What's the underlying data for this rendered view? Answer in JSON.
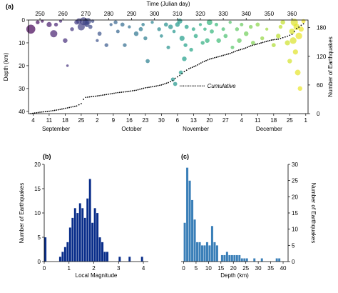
{
  "chart_data": [
    {
      "panel": "(a)",
      "type": "scatter",
      "top_axis_label": "Time (Julian day)",
      "top_ticks": [
        250,
        260,
        270,
        280,
        290,
        300,
        310,
        320,
        330,
        340,
        350,
        360
      ],
      "x_range_julian": [
        245,
        367
      ],
      "bottom_day_ticks": [
        {
          "label": "4",
          "jd": 247
        },
        {
          "label": "11",
          "jd": 254
        },
        {
          "label": "18",
          "jd": 261
        },
        {
          "label": "25",
          "jd": 268
        },
        {
          "label": "2",
          "jd": 275
        },
        {
          "label": "9",
          "jd": 282
        },
        {
          "label": "16",
          "jd": 289
        },
        {
          "label": "23",
          "jd": 296
        },
        {
          "label": "30",
          "jd": 303
        },
        {
          "label": "6",
          "jd": 310
        },
        {
          "label": "13",
          "jd": 317
        },
        {
          "label": "20",
          "jd": 324
        },
        {
          "label": "27",
          "jd": 331
        },
        {
          "label": "4",
          "jd": 338
        },
        {
          "label": "11",
          "jd": 345
        },
        {
          "label": "18",
          "jd": 352
        },
        {
          "label": "25",
          "jd": 359
        },
        {
          "label": "1",
          "jd": 366
        }
      ],
      "months": [
        {
          "label": "September",
          "jd": 257
        },
        {
          "label": "October",
          "jd": 290
        },
        {
          "label": "November",
          "jd": 318
        },
        {
          "label": "December",
          "jd": 350
        }
      ],
      "ylabel": "Depth (km)",
      "yticks": [
        0,
        10,
        20,
        30,
        40
      ],
      "ylim": [
        0,
        41
      ],
      "y2label": "Number of Earthquakes",
      "y2ticks": [
        0,
        60,
        120,
        180
      ],
      "y2lim": [
        0,
        196
      ],
      "annotation": "Cumulative",
      "points": [
        {
          "x": 246,
          "y": 4,
          "m": 3.5
        },
        {
          "x": 249,
          "y": 1,
          "m": 1.5
        },
        {
          "x": 251,
          "y": 0.5,
          "m": 1.2
        },
        {
          "x": 254,
          "y": 2,
          "m": 2
        },
        {
          "x": 256,
          "y": 6,
          "m": 2.8
        },
        {
          "x": 257,
          "y": 2,
          "m": 1.5
        },
        {
          "x": 259,
          "y": 0.5,
          "m": 1.2
        },
        {
          "x": 261,
          "y": 9,
          "m": 1.8
        },
        {
          "x": 262,
          "y": 20,
          "m": 1
        },
        {
          "x": 264,
          "y": 4,
          "m": 1.5
        },
        {
          "x": 266,
          "y": 1,
          "m": 1.8
        },
        {
          "x": 267,
          "y": 0.5,
          "m": 2.2
        },
        {
          "x": 268,
          "y": 3,
          "m": 2.8
        },
        {
          "x": 269,
          "y": 0.5,
          "m": 3
        },
        {
          "x": 270,
          "y": 1,
          "m": 2.5
        },
        {
          "x": 270.5,
          "y": 2,
          "m": 2
        },
        {
          "x": 271,
          "y": 0.5,
          "m": 2.4
        },
        {
          "x": 272,
          "y": 3,
          "m": 1.6
        },
        {
          "x": 273,
          "y": 0.5,
          "m": 1.3
        },
        {
          "x": 275,
          "y": 9,
          "m": 1.2
        },
        {
          "x": 276,
          "y": 6,
          "m": 1.6
        },
        {
          "x": 279,
          "y": 11,
          "m": 1.5
        },
        {
          "x": 281,
          "y": 2,
          "m": 1.2
        },
        {
          "x": 283,
          "y": 1,
          "m": 1.5
        },
        {
          "x": 284,
          "y": 5,
          "m": 1.4
        },
        {
          "x": 286,
          "y": 2,
          "m": 1.6
        },
        {
          "x": 287,
          "y": 11,
          "m": 1.5
        },
        {
          "x": 289,
          "y": 3,
          "m": 1.2
        },
        {
          "x": 292,
          "y": 6,
          "m": 1.8
        },
        {
          "x": 294,
          "y": 4,
          "m": 1.6
        },
        {
          "x": 295,
          "y": 2,
          "m": 1.3
        },
        {
          "x": 296,
          "y": 8,
          "m": 1.5
        },
        {
          "x": 297,
          "y": 18,
          "m": 1.6
        },
        {
          "x": 299,
          "y": 1,
          "m": 1.2
        },
        {
          "x": 302,
          "y": 4,
          "m": 1.5
        },
        {
          "x": 303,
          "y": 7,
          "m": 1.3
        },
        {
          "x": 305,
          "y": 2,
          "m": 1.6
        },
        {
          "x": 306,
          "y": 12,
          "m": 1.4
        },
        {
          "x": 307,
          "y": 3,
          "m": 1.8
        },
        {
          "x": 308,
          "y": 26,
          "m": 1.5
        },
        {
          "x": 308.5,
          "y": 5,
          "m": 1.3
        },
        {
          "x": 309,
          "y": 28,
          "m": 1.6
        },
        {
          "x": 310,
          "y": 2,
          "m": 1.8
        },
        {
          "x": 311,
          "y": 0.5,
          "m": 2
        },
        {
          "x": 311.5,
          "y": 23,
          "m": 1.6
        },
        {
          "x": 312,
          "y": 8,
          "m": 2
        },
        {
          "x": 313,
          "y": 17,
          "m": 1.8
        },
        {
          "x": 313.5,
          "y": 11,
          "m": 1.5
        },
        {
          "x": 314,
          "y": 3,
          "m": 1.6
        },
        {
          "x": 316,
          "y": 13,
          "m": 1.5
        },
        {
          "x": 317,
          "y": 4,
          "m": 1.4
        },
        {
          "x": 318,
          "y": 7,
          "m": 1.6
        },
        {
          "x": 320,
          "y": 2,
          "m": 1.2
        },
        {
          "x": 321,
          "y": 10,
          "m": 1.5
        },
        {
          "x": 322,
          "y": 4,
          "m": 1.3
        },
        {
          "x": 323,
          "y": 9,
          "m": 1.8
        },
        {
          "x": 324,
          "y": 1,
          "m": 2.2
        },
        {
          "x": 325,
          "y": 5,
          "m": 1.6
        },
        {
          "x": 327,
          "y": 2,
          "m": 1.4
        },
        {
          "x": 328,
          "y": 9,
          "m": 1.8
        },
        {
          "x": 330,
          "y": 4,
          "m": 1.4
        },
        {
          "x": 331,
          "y": 7,
          "m": 1.6
        },
        {
          "x": 333,
          "y": 1,
          "m": 1.2
        },
        {
          "x": 334,
          "y": 12,
          "m": 1.4
        },
        {
          "x": 336,
          "y": 4,
          "m": 1.5
        },
        {
          "x": 337,
          "y": 9,
          "m": 1.8
        },
        {
          "x": 338,
          "y": 2,
          "m": 1.4
        },
        {
          "x": 340,
          "y": 6,
          "m": 1.8
        },
        {
          "x": 342,
          "y": 3,
          "m": 1.5
        },
        {
          "x": 343,
          "y": 10,
          "m": 1.6
        },
        {
          "x": 345,
          "y": 2,
          "m": 1.6
        },
        {
          "x": 347,
          "y": 8,
          "m": 1.5
        },
        {
          "x": 349,
          "y": 4,
          "m": 1.2
        },
        {
          "x": 352,
          "y": 11,
          "m": 1.6
        },
        {
          "x": 354,
          "y": 7,
          "m": 1.8
        },
        {
          "x": 355,
          "y": 3,
          "m": 1.5
        },
        {
          "x": 356,
          "y": 1,
          "m": 1.8
        },
        {
          "x": 358,
          "y": 10,
          "m": 2
        },
        {
          "x": 359,
          "y": 18,
          "m": 1.8
        },
        {
          "x": 360,
          "y": 5,
          "m": 2.2
        },
        {
          "x": 360.5,
          "y": 9,
          "m": 2.6
        },
        {
          "x": 361,
          "y": 1,
          "m": 2.8
        },
        {
          "x": 361.5,
          "y": 14,
          "m": 2
        },
        {
          "x": 362,
          "y": 3,
          "m": 2.4
        },
        {
          "x": 362.5,
          "y": 23,
          "m": 2.2
        },
        {
          "x": 363,
          "y": 7,
          "m": 2.6
        },
        {
          "x": 363.5,
          "y": 30,
          "m": 1.8
        },
        {
          "x": 364,
          "y": 4,
          "m": 2
        },
        {
          "x": 365,
          "y": 0.5,
          "m": 1.6
        }
      ],
      "cumulative": [
        [
          246,
          0
        ],
        [
          250,
          3
        ],
        [
          254,
          5
        ],
        [
          258,
          8
        ],
        [
          262,
          12
        ],
        [
          266,
          16
        ],
        [
          268,
          21
        ],
        [
          269,
          30
        ],
        [
          270,
          34
        ],
        [
          275,
          37
        ],
        [
          279,
          40
        ],
        [
          284,
          44
        ],
        [
          288,
          46
        ],
        [
          292,
          49
        ],
        [
          296,
          54
        ],
        [
          300,
          57
        ],
        [
          303,
          60
        ],
        [
          306,
          65
        ],
        [
          308,
          69
        ],
        [
          309,
          74
        ],
        [
          311,
          80
        ],
        [
          313,
          88
        ],
        [
          315,
          94
        ],
        [
          318,
          100
        ],
        [
          321,
          108
        ],
        [
          324,
          114
        ],
        [
          327,
          118
        ],
        [
          330,
          122
        ],
        [
          333,
          126
        ],
        [
          336,
          132
        ],
        [
          339,
          136
        ],
        [
          342,
          142
        ],
        [
          345,
          146
        ],
        [
          348,
          150
        ],
        [
          351,
          154
        ],
        [
          354,
          156
        ],
        [
          356,
          159
        ],
        [
          358,
          162
        ],
        [
          360,
          166
        ],
        [
          361,
          172
        ],
        [
          362,
          178
        ],
        [
          363,
          181
        ],
        [
          364,
          185
        ],
        [
          365,
          188
        ],
        [
          366,
          190
        ]
      ]
    },
    {
      "panel": "(b)",
      "type": "bar",
      "xlabel": "Local Magnitude",
      "ylabel": "Number of Earthquakes",
      "xticks": [
        0,
        1,
        2,
        3,
        4
      ],
      "xlim": [
        0,
        4.2
      ],
      "yticks": [
        0,
        5,
        10,
        15,
        20
      ],
      "ylim": [
        0,
        20
      ],
      "bin_width": 0.1,
      "bin_start": [
        0.0,
        0.6,
        0.7,
        0.8,
        0.9,
        1.0,
        1.1,
        1.2,
        1.3,
        1.4,
        1.5,
        1.6,
        1.7,
        1.8,
        1.9,
        2.0,
        2.1,
        2.2,
        2.3,
        2.4,
        2.5,
        3.0,
        3.4,
        3.9
      ],
      "values": [
        5,
        1,
        2,
        3,
        4,
        7,
        9,
        11,
        10,
        12,
        11,
        9,
        13,
        17,
        8,
        11,
        10,
        5,
        4,
        2,
        2,
        1,
        1,
        1
      ]
    },
    {
      "panel": "(c)",
      "type": "bar",
      "xlabel": "Depth (km)",
      "ylabel": "Number of Earthquakes",
      "xticks": [
        0,
        5,
        10,
        15,
        20,
        25,
        30,
        35,
        40
      ],
      "xlim": [
        -1,
        42
      ],
      "yticks": [
        0,
        5,
        10,
        15,
        20,
        25,
        30
      ],
      "ylim": [
        0,
        30
      ],
      "bin_width": 1,
      "bin_start": [
        0,
        1,
        2,
        3,
        4,
        5,
        6,
        7,
        8,
        9,
        10,
        11,
        12,
        13,
        15,
        16,
        17,
        18,
        19,
        20,
        21,
        22,
        23,
        24,
        25,
        28,
        31,
        37,
        38
      ],
      "values": [
        12,
        29,
        25,
        19,
        13,
        6,
        6,
        5,
        5,
        6,
        5,
        11,
        6,
        5,
        2,
        2,
        3,
        2,
        2,
        2,
        2,
        2,
        1,
        1,
        1,
        1,
        1,
        1,
        1
      ]
    }
  ]
}
